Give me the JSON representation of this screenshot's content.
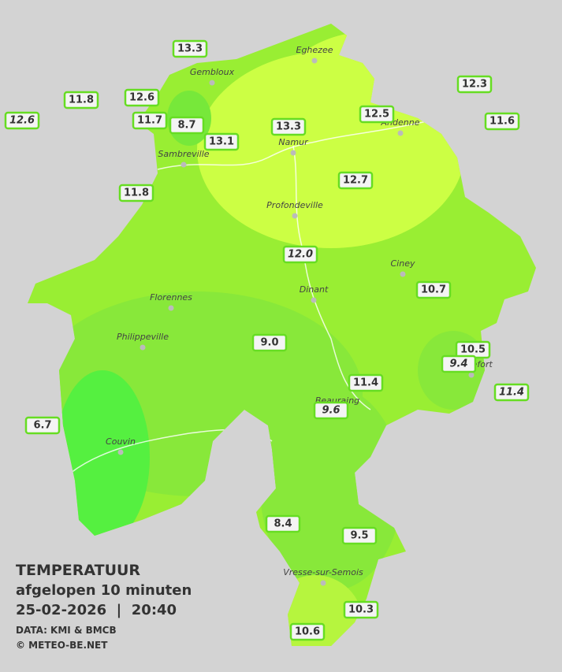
{
  "title": {
    "heading": "TEMPERATUUR",
    "subtitle": "afgelopen 10 minuten",
    "timestamp": "25-02-2026  |  20:40",
    "source": "DATA: KMI & BMCB",
    "credit": "© METEO-BE.NET"
  },
  "places": [
    "Eghezee",
    "Gembloux",
    "Andenne",
    "Namur",
    "Sambreville",
    "Profondeville",
    "Ciney",
    "Dinant",
    "Florennes",
    "Philippeville",
    "Rochefort",
    "Beauraing",
    "Couvin",
    "Vresse-sur-Semois"
  ],
  "stations": [
    {
      "value": "13.3",
      "italic": false
    },
    {
      "value": "12.6",
      "italic": true
    },
    {
      "value": "11.8",
      "italic": false
    },
    {
      "value": "12.6",
      "italic": false
    },
    {
      "value": "11.7",
      "italic": false
    },
    {
      "value": "8.7",
      "italic": false
    },
    {
      "value": "13.1",
      "italic": false
    },
    {
      "value": "13.3",
      "italic": false
    },
    {
      "value": "12.5",
      "italic": false
    },
    {
      "value": "12.3",
      "italic": false
    },
    {
      "value": "11.6",
      "italic": false
    },
    {
      "value": "11.8",
      "italic": false
    },
    {
      "value": "12.7",
      "italic": false
    },
    {
      "value": "12.0",
      "italic": true
    },
    {
      "value": "10.7",
      "italic": false
    },
    {
      "value": "9.0",
      "italic": false
    },
    {
      "value": "10.5",
      "italic": false
    },
    {
      "value": "9.4",
      "italic": true
    },
    {
      "value": "11.4",
      "italic": false
    },
    {
      "value": "11.4",
      "italic": true
    },
    {
      "value": "9.6",
      "italic": true
    },
    {
      "value": "6.7",
      "italic": false
    },
    {
      "value": "8.4",
      "italic": false
    },
    {
      "value": "9.5",
      "italic": false
    },
    {
      "value": "10.3",
      "italic": false
    },
    {
      "value": "10.6",
      "italic": false
    }
  ]
}
